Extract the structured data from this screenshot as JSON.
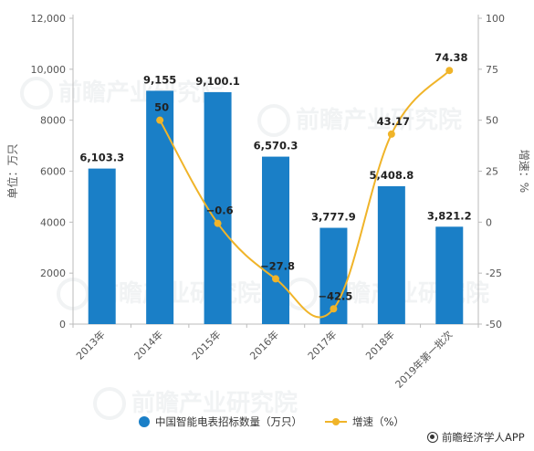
{
  "chart_data": {
    "type": "bar",
    "categories": [
      "2013年",
      "2014年",
      "2015年",
      "2016年",
      "2017年",
      "2018年",
      "2019年第一批次"
    ],
    "series": [
      {
        "name": "中国智能电表招标数量（万只）",
        "type": "bar",
        "axis": "left",
        "values": [
          6103.3,
          9155,
          9100.1,
          6570.3,
          3777.9,
          5408.8,
          3821.2
        ],
        "labels": [
          "6,103.3",
          "9,155",
          "9,100.1",
          "6,570.3",
          "3,777.9",
          "5,408.8",
          "3,821.2"
        ]
      },
      {
        "name": "增速（%）",
        "type": "line",
        "axis": "right",
        "values": [
          null,
          50,
          -0.6,
          -27.8,
          -42.5,
          43.17,
          74.38
        ],
        "labels": [
          "",
          "50",
          "−0.6",
          "−27.8",
          "−42.5",
          "43.17",
          "74.38"
        ]
      }
    ],
    "ylabel": "单位：万只",
    "y2label": "增速：%",
    "ylim": [
      0,
      12000
    ],
    "y2lim": [
      -50,
      100
    ],
    "yticks": [
      0,
      2000,
      4000,
      6000,
      8000,
      10000,
      12000
    ],
    "ytick_labels": [
      "0",
      "2000",
      "4000",
      "6000",
      "8000",
      "10,000",
      "12,000"
    ],
    "y2ticks": [
      -50,
      -25,
      0,
      25,
      50,
      75,
      100
    ],
    "y2tick_labels": [
      "-50",
      "-25",
      "0",
      "25",
      "50",
      "75",
      "100"
    ],
    "grid": false,
    "legend": "bottom",
    "colors": {
      "bar": "#1a7fc7",
      "line": "#f0b429",
      "axis": "#bbbbbb"
    }
  },
  "source": {
    "text": "前瞻经济学人APP",
    "icon": "source-logo-icon"
  },
  "watermark": {
    "text": "前瞻产业研究院"
  }
}
